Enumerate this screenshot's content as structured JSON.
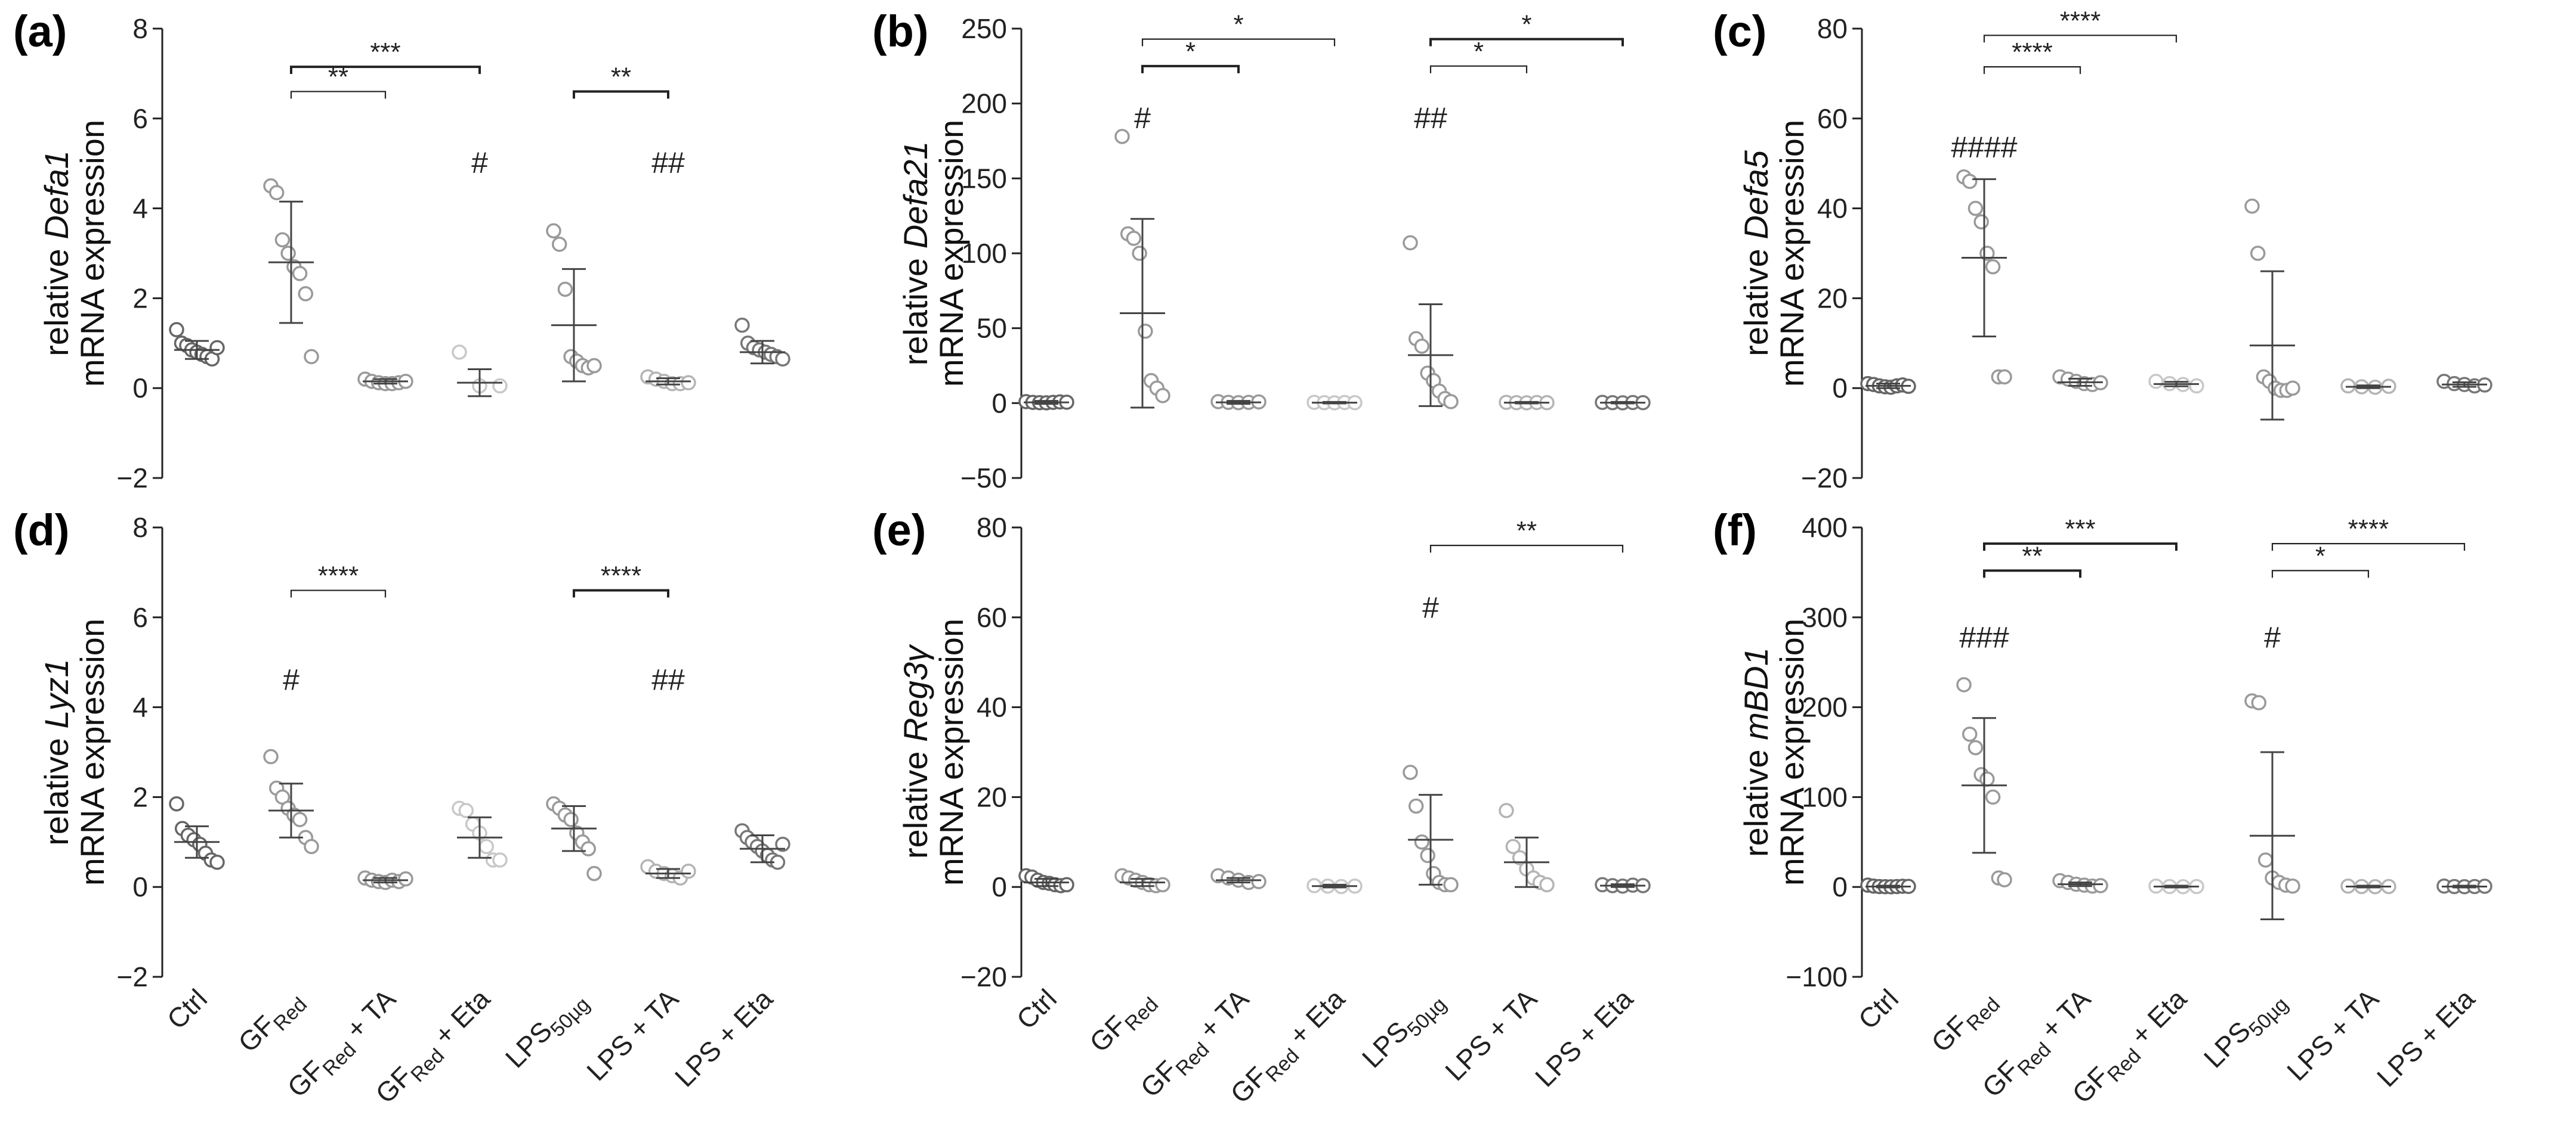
{
  "chart_data": [
    {
      "type": "scatter",
      "panel": "(a)",
      "ylabel_prefix": "relative ",
      "gene": "Defa1",
      "ylabel_line2": "mRNA expression",
      "ylim": [
        -2,
        8
      ],
      "yticks": [
        "−2",
        "0",
        "2",
        "4",
        "6",
        "8"
      ],
      "groups": [
        {
          "mean": 0.85,
          "sd": 0.2,
          "color": "#666666",
          "points": [
            1.3,
            1.0,
            0.95,
            0.85,
            0.8,
            0.75,
            0.7,
            0.65,
            0.9
          ]
        },
        {
          "mean": 2.8,
          "sd": 1.35,
          "color": "#9a9a9a",
          "points": [
            4.5,
            4.35,
            3.3,
            3.0,
            2.7,
            2.55,
            2.1,
            0.7
          ]
        },
        {
          "mean": 0.15,
          "sd": 0.05,
          "color": "#9a9a9a",
          "points": [
            0.2,
            0.15,
            0.12,
            0.1,
            0.1,
            0.12,
            0.15
          ]
        },
        {
          "mean": 0.12,
          "sd": 0.3,
          "color": "#c8c8c8",
          "points": [
            0.8,
            0.05,
            0.05
          ]
        },
        {
          "mean": 1.4,
          "sd": 1.25,
          "color": "#9a9a9a",
          "points": [
            3.5,
            3.2,
            2.2,
            0.7,
            0.6,
            0.5,
            0.45,
            0.5
          ]
        },
        {
          "mean": 0.15,
          "sd": 0.07,
          "color": "#b4b4b4",
          "points": [
            0.25,
            0.2,
            0.15,
            0.1,
            0.1,
            0.12
          ]
        },
        {
          "mean": 0.8,
          "sd": 0.25,
          "color": "#777777",
          "points": [
            1.4,
            1.0,
            0.9,
            0.85,
            0.8,
            0.75,
            0.7,
            0.65
          ]
        }
      ],
      "brackets": [
        {
          "from": 1,
          "to": 3,
          "y": 7.15,
          "label": "***",
          "bold": true
        },
        {
          "from": 1,
          "to": 2,
          "y": 6.6,
          "label": "**",
          "bold": false
        },
        {
          "from": 4,
          "to": 5,
          "y": 6.6,
          "label": "**",
          "bold": true
        }
      ],
      "hashes": [
        {
          "group": 3,
          "y": 5.0,
          "label": "#"
        },
        {
          "group": 5,
          "y": 5.0,
          "label": "##"
        }
      ]
    },
    {
      "type": "scatter",
      "panel": "(b)",
      "ylabel_prefix": "relative ",
      "gene": "Defa21",
      "ylabel_line2": "mRNA expression",
      "ylim": [
        -50,
        250
      ],
      "yticks": [
        "−50",
        "0",
        "50",
        "100",
        "150",
        "200",
        "250"
      ],
      "groups": [
        {
          "mean": 0.5,
          "sd": 1,
          "color": "#666666",
          "points": [
            1,
            0.5,
            0.3,
            0.2,
            0.5,
            0.8,
            0.6
          ]
        },
        {
          "mean": 60,
          "sd": 63,
          "color": "#9a9a9a",
          "points": [
            178,
            113,
            110,
            100,
            48,
            15,
            10,
            5
          ]
        },
        {
          "mean": 0.5,
          "sd": 1,
          "color": "#9a9a9a",
          "points": [
            1,
            0.5,
            0.3,
            0.5,
            0.8
          ]
        },
        {
          "mean": 0.3,
          "sd": 0.5,
          "color": "#c8c8c8",
          "points": [
            0.5,
            0.3,
            0.2,
            0.4,
            0.3
          ]
        },
        {
          "mean": 32,
          "sd": 34,
          "color": "#9a9a9a",
          "points": [
            107,
            43,
            38,
            20,
            15,
            8,
            3,
            1
          ]
        },
        {
          "mean": 0.3,
          "sd": 0.5,
          "color": "#b4b4b4",
          "points": [
            0.5,
            0.3,
            0.2,
            0.4,
            0.3
          ]
        },
        {
          "mean": 0.3,
          "sd": 0.5,
          "color": "#777777",
          "points": [
            0.5,
            0.3,
            0.2,
            0.4,
            0.3
          ]
        }
      ],
      "brackets": [
        {
          "from": 1,
          "to": 3,
          "y": 243,
          "label": "*",
          "bold": false
        },
        {
          "from": 1,
          "to": 2,
          "y": 225,
          "label": "*",
          "bold": true
        },
        {
          "from": 4,
          "to": 6,
          "y": 243,
          "label": "*",
          "bold": true
        },
        {
          "from": 4,
          "to": 5,
          "y": 225,
          "label": "*",
          "bold": false
        }
      ],
      "hashes": [
        {
          "group": 1,
          "y": 190,
          "label": "#"
        },
        {
          "group": 4,
          "y": 190,
          "label": "##"
        }
      ]
    },
    {
      "type": "scatter",
      "panel": "(c)",
      "ylabel_prefix": "relative ",
      "gene": "Defa5",
      "ylabel_line2": "mRNA expression",
      "ylim": [
        -20,
        80
      ],
      "yticks": [
        "−20",
        "0",
        "20",
        "40",
        "60",
        "80"
      ],
      "groups": [
        {
          "mean": 0.5,
          "sd": 0.5,
          "color": "#666666",
          "points": [
            1,
            0.8,
            0.5,
            0.3,
            0.2,
            0.5,
            0.7,
            0.4
          ]
        },
        {
          "mean": 29,
          "sd": 17.5,
          "color": "#9a9a9a",
          "points": [
            47,
            46,
            40,
            37,
            30,
            27,
            2.5,
            2.5
          ]
        },
        {
          "mean": 1.3,
          "sd": 0.8,
          "color": "#9a9a9a",
          "points": [
            2.5,
            2.0,
            1.5,
            1.0,
            0.8,
            1.2
          ]
        },
        {
          "mean": 0.9,
          "sd": 0.5,
          "color": "#c8c8c8",
          "points": [
            1.5,
            1.0,
            0.8,
            0.5
          ]
        },
        {
          "mean": 9.5,
          "sd": 16.5,
          "color": "#9a9a9a",
          "points": [
            40.5,
            30,
            2.5,
            1.5,
            0,
            -0.5,
            -0.5,
            0
          ]
        },
        {
          "mean": 0.3,
          "sd": 0.3,
          "color": "#b4b4b4",
          "points": [
            0.5,
            0.3,
            0.2,
            0.4
          ]
        },
        {
          "mean": 0.8,
          "sd": 0.5,
          "color": "#777777",
          "points": [
            1.5,
            1.0,
            0.8,
            0.5,
            0.7
          ]
        }
      ],
      "brackets": [
        {
          "from": 1,
          "to": 3,
          "y": 78.5,
          "label": "****",
          "bold": false
        },
        {
          "from": 1,
          "to": 2,
          "y": 71.5,
          "label": "****",
          "bold": false
        }
      ],
      "hashes": [
        {
          "group": 1,
          "y": 53.5,
          "label": "####"
        }
      ]
    },
    {
      "type": "scatter",
      "panel": "(d)",
      "ylabel_prefix": "relative ",
      "gene": "Lyz1",
      "ylabel_line2": "mRNA expression",
      "ylim": [
        -2,
        8
      ],
      "yticks": [
        "−2",
        "0",
        "2",
        "4",
        "6",
        "8"
      ],
      "groups": [
        {
          "mean": 1.0,
          "sd": 0.35,
          "color": "#666666",
          "points": [
            1.85,
            1.3,
            1.15,
            1.05,
            0.95,
            0.75,
            0.6,
            0.55
          ]
        },
        {
          "mean": 1.7,
          "sd": 0.6,
          "color": "#9a9a9a",
          "points": [
            2.9,
            2.2,
            2.0,
            1.75,
            1.6,
            1.5,
            1.1,
            0.9
          ]
        },
        {
          "mean": 0.15,
          "sd": 0.05,
          "color": "#9a9a9a",
          "points": [
            0.2,
            0.15,
            0.12,
            0.1,
            0.15,
            0.12,
            0.18
          ]
        },
        {
          "mean": 1.1,
          "sd": 0.45,
          "color": "#c8c8c8",
          "points": [
            1.75,
            1.7,
            1.4,
            1.2,
            0.9,
            0.6,
            0.6
          ]
        },
        {
          "mean": 1.3,
          "sd": 0.5,
          "color": "#9a9a9a",
          "points": [
            1.85,
            1.75,
            1.6,
            1.5,
            1.2,
            1.0,
            0.85,
            0.3
          ]
        },
        {
          "mean": 0.3,
          "sd": 0.1,
          "color": "#b4b4b4",
          "points": [
            0.45,
            0.35,
            0.3,
            0.25,
            0.2,
            0.35
          ]
        },
        {
          "mean": 0.85,
          "sd": 0.3,
          "color": "#777777",
          "points": [
            1.25,
            1.1,
            1.0,
            0.9,
            0.8,
            0.7,
            0.6,
            0.55,
            0.95
          ]
        }
      ],
      "brackets": [
        {
          "from": 1,
          "to": 2,
          "y": 6.6,
          "label": "****",
          "bold": false
        },
        {
          "from": 4,
          "to": 5,
          "y": 6.6,
          "label": "****",
          "bold": true
        }
      ],
      "hashes": [
        {
          "group": 1,
          "y": 4.6,
          "label": "#"
        },
        {
          "group": 5,
          "y": 4.6,
          "label": "##"
        }
      ]
    },
    {
      "type": "scatter",
      "panel": "(e)",
      "ylabel_prefix": "relative ",
      "gene": "Reg3γ",
      "ylabel_line2": "mRNA expression",
      "ylim": [
        -20,
        80
      ],
      "yticks": [
        "−20",
        "0",
        "20",
        "40",
        "60",
        "80"
      ],
      "groups": [
        {
          "mean": 1.0,
          "sd": 0.8,
          "color": "#666666",
          "points": [
            2.5,
            2.2,
            1.5,
            1.0,
            0.8,
            0.5,
            0.3,
            0.5
          ]
        },
        {
          "mean": 1.0,
          "sd": 0.8,
          "color": "#9a9a9a",
          "points": [
            2.5,
            2.0,
            1.5,
            1.0,
            0.5,
            0.3,
            0.5
          ]
        },
        {
          "mean": 1.5,
          "sd": 0.5,
          "color": "#9a9a9a",
          "points": [
            2.5,
            2.0,
            1.5,
            1.0,
            1.2
          ]
        },
        {
          "mean": 0.2,
          "sd": 0.3,
          "color": "#c8c8c8",
          "points": [
            0.3,
            0.2,
            0.1,
            0.2
          ]
        },
        {
          "mean": 10.5,
          "sd": 10,
          "color": "#9a9a9a",
          "points": [
            25.5,
            18,
            10,
            7,
            3,
            1,
            0.5,
            0.5
          ]
        },
        {
          "mean": 5.5,
          "sd": 5.5,
          "color": "#b4b4b4",
          "points": [
            17,
            9,
            6.5,
            4,
            2,
            1,
            0.5
          ]
        },
        {
          "mean": 0.3,
          "sd": 0.3,
          "color": "#777777",
          "points": [
            0.5,
            0.3,
            0.2,
            0.4,
            0.3
          ]
        }
      ],
      "brackets": [
        {
          "from": 4,
          "to": 6,
          "y": 76,
          "label": "**",
          "bold": false
        }
      ],
      "hashes": [
        {
          "group": 4,
          "y": 62,
          "label": "#"
        }
      ]
    },
    {
      "type": "scatter",
      "panel": "(f)",
      "ylabel_prefix": "relative ",
      "gene": "mBD1",
      "ylabel_line2": "mRNA expression",
      "ylim": [
        -100,
        400
      ],
      "yticks": [
        "−100",
        "0",
        "100",
        "200",
        "300",
        "400"
      ],
      "groups": [
        {
          "mean": 0.5,
          "sd": 1,
          "color": "#666666",
          "points": [
            2,
            1,
            0.5,
            0.3,
            0.2,
            0.5,
            0.8,
            0.6
          ]
        },
        {
          "mean": 113,
          "sd": 75,
          "color": "#9a9a9a",
          "points": [
            225,
            170,
            155,
            125,
            120,
            100,
            10,
            8
          ]
        },
        {
          "mean": 3,
          "sd": 2,
          "color": "#9a9a9a",
          "points": [
            7,
            5,
            3,
            2,
            1,
            1.5
          ]
        },
        {
          "mean": 0.5,
          "sd": 1,
          "color": "#c8c8c8",
          "points": [
            1,
            0.5,
            0.3,
            0.5
          ]
        },
        {
          "mean": 57,
          "sd": 93,
          "color": "#9a9a9a",
          "points": [
            207,
            205,
            30,
            10,
            5,
            2,
            1
          ]
        },
        {
          "mean": 0.5,
          "sd": 1,
          "color": "#b4b4b4",
          "points": [
            1,
            0.5,
            0.3,
            0.5
          ]
        },
        {
          "mean": 0.5,
          "sd": 1,
          "color": "#777777",
          "points": [
            1,
            0.5,
            0.3,
            0.5,
            0.8
          ]
        }
      ],
      "brackets": [
        {
          "from": 1,
          "to": 3,
          "y": 382,
          "label": "***",
          "bold": true
        },
        {
          "from": 1,
          "to": 2,
          "y": 352,
          "label": "**",
          "bold": true
        },
        {
          "from": 4,
          "to": 6,
          "y": 382,
          "label": "****",
          "bold": false
        },
        {
          "from": 4,
          "to": 5,
          "y": 352,
          "label": "*",
          "bold": false
        }
      ],
      "hashes": [
        {
          "group": 1,
          "y": 277,
          "label": "###"
        },
        {
          "group": 4,
          "y": 277,
          "label": "#"
        }
      ]
    }
  ],
  "x_categories": [
    {
      "main": "Ctrl",
      "sub": "",
      "tail": ""
    },
    {
      "main": "GF",
      "sub": "Red",
      "tail": ""
    },
    {
      "main": "GF",
      "sub": "Red",
      "tail": " + TA"
    },
    {
      "main": "GF",
      "sub": "Red",
      "tail": " + Eta"
    },
    {
      "main": "LPS",
      "sub": "50µg",
      "tail": ""
    },
    {
      "main": "LPS + TA",
      "sub": "",
      "tail": ""
    },
    {
      "main": "LPS + Eta",
      "sub": "",
      "tail": ""
    }
  ]
}
